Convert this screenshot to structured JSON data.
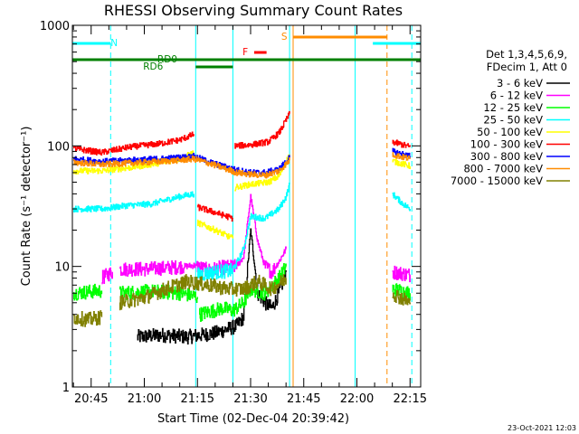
{
  "chart_data": {
    "type": "line",
    "title": "RHESSI Observing Summary Count Rates",
    "xlabel": "Start Time (02-Dec-04 20:39:42)",
    "ylabel": "Count Rate (s⁻¹ detector⁻¹)",
    "yscale": "log",
    "ylim": [
      1,
      1000
    ],
    "xlim_minutes": [
      39.7,
      138
    ],
    "x_ticks": [
      {
        "m": 45,
        "label": "20:45"
      },
      {
        "m": 60,
        "label": "21:00"
      },
      {
        "m": 75,
        "label": "21:15"
      },
      {
        "m": 90,
        "label": "21:30"
      },
      {
        "m": 105,
        "label": "21:45"
      },
      {
        "m": 120,
        "label": "22:00"
      },
      {
        "m": 135,
        "label": "22:15"
      }
    ],
    "y_ticks": [
      {
        "v": 1,
        "label": "1"
      },
      {
        "v": 10,
        "label": "10"
      },
      {
        "v": 100,
        "label": "100"
      },
      {
        "v": 1000,
        "label": "1000"
      }
    ],
    "legend": {
      "placement": "right",
      "header": [
        "Det 1,3,4,5,6,9,",
        "FDecim 1, Att 0"
      ]
    },
    "annotations": {
      "corner_date": "23-Oct-2021 12:03",
      "flags": [
        {
          "label": "N",
          "color": "#00ffff",
          "segments": [
            [
              39.7,
              50.5
            ],
            [
              124.5,
              138
            ]
          ]
        },
        {
          "label": "S",
          "color": "#ff8c00",
          "segments": [
            [
              102,
              128.5
            ]
          ]
        },
        {
          "label": "F",
          "color": "#ff0000",
          "segments": [
            [
              91,
              94.5
            ]
          ]
        },
        {
          "label": "RD0",
          "color": "#008000",
          "segments": [
            [
              39.7,
              138
            ]
          ]
        },
        {
          "label": "RD6",
          "color": "#008000",
          "segments": [
            [
              74.5,
              85
            ]
          ]
        }
      ],
      "vertical_lines": [
        {
          "m": 50.5,
          "color": "#00ffff",
          "dashed": true
        },
        {
          "m": 74.5,
          "color": "#00ffff",
          "dashed": false
        },
        {
          "m": 85,
          "color": "#00ffff",
          "dashed": false
        },
        {
          "m": 101,
          "color": "#00ffff",
          "dashed": false
        },
        {
          "m": 102,
          "color": "#ff8c00",
          "dashed": false
        },
        {
          "m": 119.5,
          "color": "#00ffff",
          "dashed": false
        },
        {
          "m": 128.5,
          "color": "#ff8c00",
          "dashed": true
        },
        {
          "m": 135.5,
          "color": "#00ffff",
          "dashed": true
        }
      ]
    },
    "series": [
      {
        "name": "3 - 6 keV",
        "color": "#000000",
        "segments": [
          [
            [
              58,
              2.6
            ],
            [
              65,
              2.7
            ],
            [
              72,
              2.6
            ],
            [
              80,
              2.8
            ],
            [
              86,
              3.2
            ],
            [
              88,
              3.8
            ],
            [
              90,
              20
            ],
            [
              92,
              6
            ],
            [
              94,
              5
            ],
            [
              96,
              4.5
            ],
            [
              98,
              6
            ],
            [
              100,
              9
            ]
          ]
        ]
      },
      {
        "name": "6 - 12 keV",
        "color": "#ff00ff",
        "segments": [
          [
            [
              48,
              8
            ],
            [
              51,
              9
            ]
          ],
          [
            [
              53,
              9.5
            ],
            [
              60,
              9.5
            ],
            [
              68,
              9.8
            ],
            [
              74,
              10.2
            ],
            [
              78,
              9.3
            ],
            [
              82,
              9.8
            ],
            [
              86,
              10
            ],
            [
              88,
              12
            ],
            [
              90,
              38
            ],
            [
              92,
              16
            ],
            [
              94,
              10
            ],
            [
              96,
              9
            ],
            [
              98,
              11
            ],
            [
              100,
              14
            ]
          ],
          [
            [
              130,
              9
            ],
            [
              135,
              8.5
            ]
          ]
        ]
      },
      {
        "name": "12 - 25 keV",
        "color": "#00ff00",
        "segments": [
          [
            [
              40,
              6
            ],
            [
              48,
              6.3
            ]
          ],
          [
            [
              53,
              6
            ],
            [
              62,
              6.2
            ],
            [
              70,
              6
            ],
            [
              75,
              5.6
            ]
          ],
          [
            [
              75.5,
              4
            ],
            [
              82,
              4.5
            ],
            [
              85,
              4.3
            ],
            [
              88,
              5
            ],
            [
              90,
              6.5
            ],
            [
              94,
              6
            ],
            [
              98,
              8
            ],
            [
              100,
              10
            ]
          ],
          [
            [
              130,
              6.5
            ],
            [
              135,
              6
            ]
          ]
        ]
      },
      {
        "name": "25 - 50 keV",
        "color": "#00ffff",
        "segments": [
          [
            [
              40,
              30
            ],
            [
              48,
              30
            ],
            [
              55,
              32
            ],
            [
              62,
              33
            ],
            [
              70,
              38
            ],
            [
              74,
              40
            ]
          ],
          [
            [
              75,
              8.5
            ],
            [
              80,
              9
            ],
            [
              85,
              9.2
            ],
            [
              88,
              14
            ],
            [
              90,
              26
            ],
            [
              94,
              25
            ],
            [
              98,
              30
            ],
            [
              100,
              38
            ],
            [
              101,
              48
            ]
          ],
          [
            [
              130,
              40
            ],
            [
              133,
              33
            ],
            [
              135,
              30
            ]
          ]
        ]
      },
      {
        "name": "50 - 100 keV",
        "color": "#ffff00",
        "segments": [
          [
            [
              40,
              62
            ],
            [
              48,
              62
            ],
            [
              56,
              66
            ],
            [
              64,
              72
            ],
            [
              70,
              78
            ],
            [
              74,
              88
            ]
          ],
          [
            [
              75,
              23
            ],
            [
              80,
              20
            ],
            [
              85,
              17
            ]
          ],
          [
            [
              85.5,
              45
            ],
            [
              90,
              48
            ],
            [
              95,
              50
            ],
            [
              98,
              56
            ],
            [
              101,
              85
            ]
          ],
          [
            [
              130,
              75
            ],
            [
              135,
              68
            ]
          ]
        ]
      },
      {
        "name": "100 - 300 keV",
        "color": "#ff0000",
        "segments": [
          [
            [
              40,
              95
            ],
            [
              48,
              88
            ],
            [
              56,
              98
            ],
            [
              64,
              104
            ],
            [
              70,
              112
            ],
            [
              74,
              125
            ]
          ],
          [
            [
              75,
              31
            ],
            [
              80,
              28
            ],
            [
              85,
              25
            ]
          ],
          [
            [
              85.5,
              100
            ],
            [
              90,
              102
            ],
            [
              95,
              108
            ],
            [
              98,
              128
            ],
            [
              101,
              185
            ]
          ],
          [
            [
              130,
              108
            ],
            [
              135,
              98
            ]
          ]
        ]
      },
      {
        "name": "300 - 800 keV",
        "color": "#0000ff",
        "segments": [
          [
            [
              40,
              78
            ],
            [
              48,
              74
            ],
            [
              56,
              76
            ],
            [
              64,
              78
            ],
            [
              70,
              80
            ],
            [
              74,
              82
            ],
            [
              78,
              74
            ],
            [
              82,
              68
            ],
            [
              86,
              63
            ],
            [
              90,
              60
            ],
            [
              94,
              60
            ],
            [
              98,
              64
            ],
            [
              101,
              80
            ]
          ],
          [
            [
              130,
              90
            ],
            [
              135,
              82
            ]
          ]
        ]
      },
      {
        "name": "800 - 7000 keV",
        "color": "#ff8c00",
        "segments": [
          [
            [
              40,
              73
            ],
            [
              48,
              70
            ],
            [
              56,
              72
            ],
            [
              64,
              74
            ],
            [
              70,
              76
            ],
            [
              74,
              78
            ],
            [
              78,
              72
            ],
            [
              82,
              66
            ],
            [
              86,
              60
            ],
            [
              90,
              58
            ],
            [
              94,
              57
            ],
            [
              98,
              62
            ],
            [
              101,
              76
            ]
          ],
          [
            [
              130,
              85
            ],
            [
              135,
              78
            ]
          ]
        ]
      },
      {
        "name": "7000 - 15000 keV",
        "color": "#808000",
        "segments": [
          [
            [
              40,
              3.8
            ],
            [
              44,
              3.6
            ],
            [
              48,
              3.8
            ]
          ],
          [
            [
              53,
              5
            ],
            [
              60,
              5.5
            ],
            [
              66,
              6.5
            ],
            [
              72,
              7.5
            ],
            [
              78,
              7
            ],
            [
              84,
              6.5
            ],
            [
              88,
              6.5
            ],
            [
              92,
              7.5
            ],
            [
              96,
              6.5
            ],
            [
              100,
              8
            ]
          ],
          [
            [
              130,
              6
            ],
            [
              135,
              5
            ]
          ]
        ]
      }
    ]
  }
}
